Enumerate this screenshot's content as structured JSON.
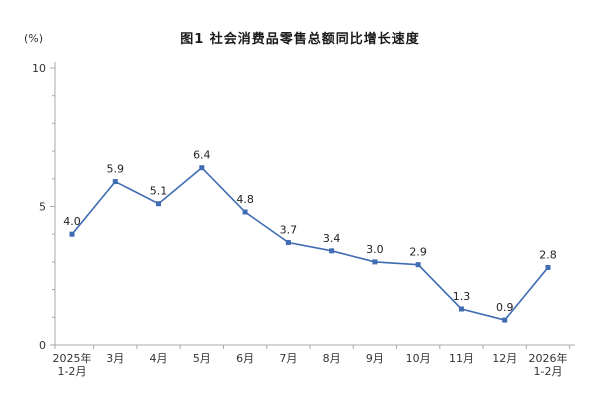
{
  "title": "图1 社会消费品零售总额同比增长速度",
  "unit_label": "(%)",
  "chart_data": {
    "type": "line",
    "categories": [
      "2025年\n1-2月",
      "3月",
      "4月",
      "5月",
      "6月",
      "7月",
      "8月",
      "9月",
      "10月",
      "11月",
      "12月",
      "2026年\n1-2月"
    ],
    "values": [
      4.0,
      5.9,
      5.1,
      6.4,
      4.8,
      3.7,
      3.4,
      3.0,
      2.9,
      1.3,
      0.9,
      2.8
    ],
    "ylabel": "(%)",
    "xlabel": "",
    "ylim": [
      0,
      10
    ],
    "yticks": [
      0,
      5,
      10
    ],
    "grid": false,
    "legend_position": "none",
    "line_color": "#3f6cb3",
    "marker_color": "#3f6cb3",
    "label_color": "#222222",
    "axis_color": "#a8a8a8"
  }
}
